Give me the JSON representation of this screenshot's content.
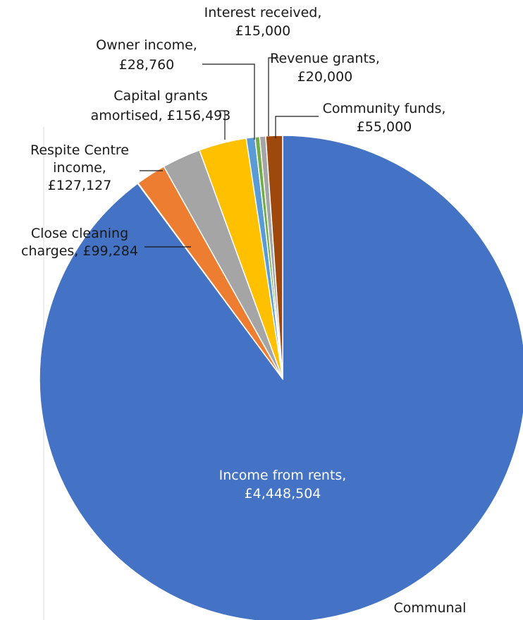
{
  "chart_data": {
    "type": "pie",
    "start_angle_deg": 0,
    "direction": "clockwise",
    "slices": [
      {
        "label": "Income from rents",
        "value_text": "£4,448,504",
        "value": 4448504,
        "color": "#4472c4"
      },
      {
        "label": "Communal",
        "value_text": "",
        "value": 1800,
        "color": "#264478"
      },
      {
        "label": "Close cleaning charges",
        "value_text": "£99,284",
        "value": 99284,
        "color": "#ed7d31"
      },
      {
        "label": "Respite Centre income",
        "value_text": "£127,127",
        "value": 127127,
        "color": "#a5a5a5"
      },
      {
        "label": "Capital grants amortised",
        "value_text": "£156,493",
        "value": 156493,
        "color": "#ffc000"
      },
      {
        "label": "Owner income",
        "value_text": "£28,760",
        "value": 28760,
        "color": "#5b9bd5"
      },
      {
        "label": "Interest received",
        "value_text": "£15,000",
        "value": 15000,
        "color": "#70ad47"
      },
      {
        "label": "Revenue grants",
        "value_text": "£20,000",
        "value": 20000,
        "color": "#a5a5a5"
      },
      {
        "label": "Community funds",
        "value_text": "£55,000",
        "value": 55000,
        "color": "#9e480e"
      }
    ],
    "labels": [
      {
        "slice": 0,
        "lines": [
          "Income from rents,",
          "£4,448,504"
        ],
        "inside": true
      },
      {
        "slice": 1,
        "lines": [
          "Communal"
        ],
        "inside": false
      },
      {
        "slice": 2,
        "lines": [
          "Close cleaning",
          "charges, £99,284"
        ],
        "inside": false
      },
      {
        "slice": 3,
        "lines": [
          "Respite Centre",
          "income,",
          "£127,127"
        ],
        "inside": false
      },
      {
        "slice": 4,
        "lines": [
          "Capital grants",
          "amortised, £156,493"
        ],
        "inside": false
      },
      {
        "slice": 5,
        "lines": [
          "Owner income,",
          "£28,760"
        ],
        "inside": false
      },
      {
        "slice": 6,
        "lines": [
          "Interest received,",
          "£15,000"
        ],
        "inside": false
      },
      {
        "slice": 7,
        "lines": [
          "Revenue grants,",
          "£20,000"
        ],
        "inside": false
      },
      {
        "slice": 8,
        "lines": [
          "Community funds,",
          "£55,000"
        ],
        "inside": false
      }
    ],
    "legend": "none"
  }
}
